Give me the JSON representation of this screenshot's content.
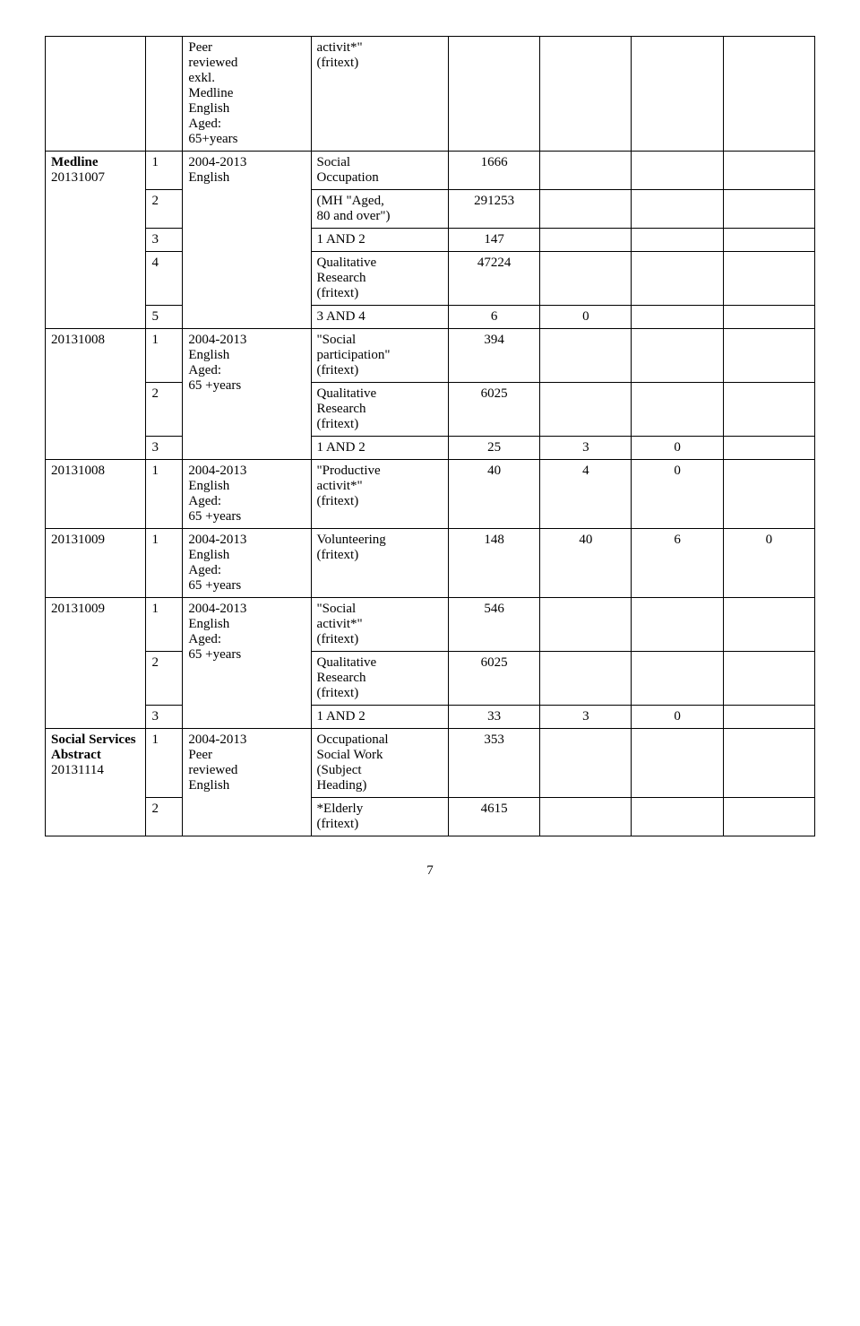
{
  "rows": [
    {
      "db": "",
      "num": "",
      "limits": "Peer reviewed exkl. Medline English Aged: 65+years",
      "query": "activit*\" (fritext)",
      "v1": "",
      "v2": "",
      "v3": "",
      "v4": ""
    },
    {
      "db": "Medline 20131007",
      "num": "1",
      "limits": "2004-2013 English",
      "query": "Social Occupation",
      "v1": "1666",
      "v2": "",
      "v3": "",
      "v4": ""
    },
    {
      "db": "",
      "num": "2",
      "limits": "",
      "query": "(MH \"Aged, 80 and over\")",
      "v1": "291253",
      "v2": "",
      "v3": "",
      "v4": ""
    },
    {
      "db": "",
      "num": "3",
      "limits": "",
      "query": "1 AND 2",
      "v1": "147",
      "v2": "",
      "v3": "",
      "v4": ""
    },
    {
      "db": "",
      "num": "4",
      "limits": "",
      "query": "Qualitative Research (fritext)",
      "v1": "47224",
      "v2": "",
      "v3": "",
      "v4": ""
    },
    {
      "db": "",
      "num": "5",
      "limits": "",
      "query": "3 AND 4",
      "v1": "6",
      "v2": "0",
      "v3": "",
      "v4": ""
    },
    {
      "db": "20131008",
      "num": "1",
      "limits": "2004-2013 English Aged: 65 +years",
      "query": "\"Social participation\" (fritext)",
      "v1": "394",
      "v2": "",
      "v3": "",
      "v4": ""
    },
    {
      "db": "",
      "num": "2",
      "limits": "",
      "query": "Qualitative Research (fritext)",
      "v1": "6025",
      "v2": "",
      "v3": "",
      "v4": ""
    },
    {
      "db": "",
      "num": "3",
      "limits": "",
      "query": "1 AND 2",
      "v1": "25",
      "v2": "3",
      "v3": "0",
      "v4": ""
    },
    {
      "db": "20131008",
      "num": "1",
      "limits": "2004-2013 English Aged: 65 +years",
      "query": "\"Productive activit*\" (fritext)",
      "v1": "40",
      "v2": "4",
      "v3": "0",
      "v4": ""
    },
    {
      "db": "20131009",
      "num": "1",
      "limits": "2004-2013 English Aged: 65 +years",
      "query": "Volunteering (fritext)",
      "v1": "148",
      "v2": "40",
      "v3": "6",
      "v4": "0"
    },
    {
      "db": "20131009",
      "num": "1",
      "limits": "2004-2013 English Aged: 65 +years",
      "query": "\"Social activit*\" (fritext)",
      "v1": "546",
      "v2": "",
      "v3": "",
      "v4": ""
    },
    {
      "db": "",
      "num": "2",
      "limits": "",
      "query": "Qualitative Research (fritext)",
      "v1": "6025",
      "v2": "",
      "v3": "",
      "v4": ""
    },
    {
      "db": "",
      "num": "3",
      "limits": "",
      "query": "1 AND 2",
      "v1": "33",
      "v2": "3",
      "v3": "0",
      "v4": ""
    },
    {
      "db": "Social Services Abstract 20131114",
      "num": "1",
      "limits": "2004-2013 Peer reviewed English",
      "query": "Occupational Social Work (Subject Heading)",
      "v1": "353",
      "v2": "",
      "v3": "",
      "v4": ""
    },
    {
      "db": "",
      "num": "2",
      "limits": "",
      "query": "*Elderly (fritext)",
      "v1": "4615",
      "v2": "",
      "v3": "",
      "v4": ""
    }
  ],
  "page_number": "7"
}
